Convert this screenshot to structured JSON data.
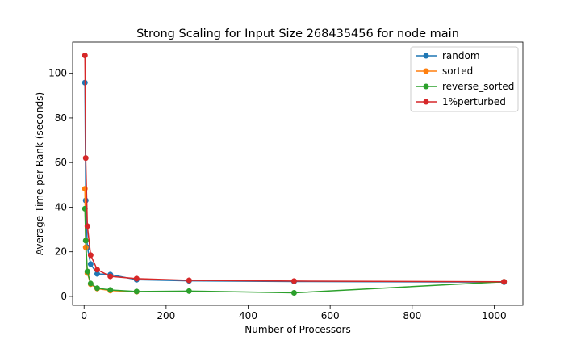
{
  "chart_data": {
    "type": "line",
    "title": "Strong Scaling for Input Size 268435456 for node main",
    "xlabel": "Number of Processors",
    "ylabel": "Average Time per Rank (seconds)",
    "xlim": [
      -28,
      1070
    ],
    "ylim": [
      -4,
      114
    ],
    "xticks": [
      0,
      200,
      400,
      600,
      800,
      1000
    ],
    "yticks": [
      0,
      20,
      40,
      60,
      80,
      100
    ],
    "grid": false,
    "legend_position": "top-right",
    "x": [
      2,
      4,
      8,
      16,
      32,
      64,
      128,
      256,
      512,
      1024
    ],
    "series": [
      {
        "name": "random",
        "color": "#1f77b4",
        "values": [
          95.8,
          43.0,
          22.0,
          14.5,
          10.1,
          9.8,
          7.5,
          7.0,
          6.7,
          6.4
        ]
      },
      {
        "name": "sorted",
        "color": "#ff7f0e",
        "values": [
          48.2,
          22.0,
          10.5,
          5.5,
          3.5,
          2.6,
          2.1,
          null,
          null,
          null
        ]
      },
      {
        "name": "reverse_sorted",
        "color": "#2ca02c",
        "values": [
          39.3,
          25.0,
          11.2,
          5.8,
          3.7,
          2.9,
          2.2,
          2.4,
          1.6,
          6.6
        ]
      },
      {
        "name": "1%perturbed",
        "color": "#d62728",
        "values": [
          108.0,
          62.0,
          31.5,
          18.5,
          12.0,
          9.0,
          8.0,
          7.2,
          6.9,
          6.6
        ]
      }
    ]
  }
}
